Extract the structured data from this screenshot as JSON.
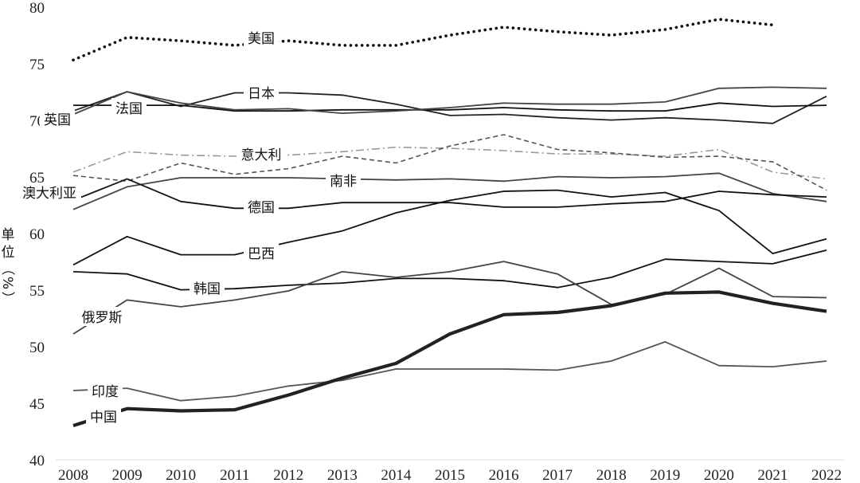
{
  "chart_data": {
    "type": "line",
    "ylabel_chars": [
      "单",
      "位",
      "（",
      "%",
      "）"
    ],
    "x": [
      2008,
      2009,
      2010,
      2011,
      2012,
      2013,
      2014,
      2015,
      2016,
      2017,
      2018,
      2019,
      2020,
      2021,
      2022
    ],
    "ylim": [
      40,
      80
    ],
    "yticks": [
      40,
      45,
      50,
      55,
      60,
      65,
      70,
      75,
      80
    ],
    "grid": false,
    "series": [
      {
        "name": "美国",
        "style": "dotted",
        "color": "#111111",
        "values": [
          75.4,
          77.4,
          77.1,
          76.7,
          77.1,
          76.7,
          76.7,
          77.6,
          78.3,
          77.9,
          77.6,
          78.1,
          79.0,
          78.5,
          null
        ]
      },
      {
        "name": "日本",
        "style": "solid",
        "color": "#222222",
        "values": [
          70.9,
          72.6,
          71.3,
          72.5,
          72.5,
          72.3,
          71.5,
          70.5,
          70.6,
          70.3,
          70.1,
          70.3,
          70.1,
          69.8,
          72.2
        ]
      },
      {
        "name": "法国",
        "style": "solid",
        "color": "#111111",
        "values": [
          71.4,
          71.4,
          71.4,
          70.9,
          70.9,
          71.0,
          71.0,
          71.0,
          71.2,
          71.0,
          70.9,
          70.9,
          71.6,
          71.3,
          71.4
        ]
      },
      {
        "name": "英国",
        "style": "solid",
        "color": "#444444",
        "values": [
          70.6,
          72.6,
          71.6,
          71.0,
          71.1,
          70.7,
          70.9,
          71.2,
          71.6,
          71.5,
          71.5,
          71.7,
          72.9,
          73.0,
          72.9
        ]
      },
      {
        "name": "意大利",
        "style": "dashdot",
        "color": "#999999",
        "values": [
          65.5,
          67.3,
          67.0,
          66.9,
          67.0,
          67.3,
          67.7,
          67.6,
          67.4,
          67.1,
          67.1,
          66.9,
          67.5,
          65.5,
          64.9
        ]
      },
      {
        "name": "南非",
        "style": "dashed",
        "color": "#555555",
        "values": [
          65.2,
          64.7,
          66.3,
          65.3,
          65.8,
          66.9,
          66.3,
          67.8,
          68.8,
          67.5,
          67.2,
          66.8,
          66.9,
          66.4,
          63.9
        ]
      },
      {
        "name": "澳大利亚",
        "style": "solid",
        "color": "#444444",
        "values": [
          62.2,
          64.2,
          65.0,
          65.0,
          65.0,
          64.9,
          64.8,
          64.9,
          64.7,
          65.1,
          65.0,
          65.1,
          65.4,
          63.6,
          62.9
        ]
      },
      {
        "name": "德国",
        "style": "solid",
        "color": "#111111",
        "values": [
          63.0,
          64.9,
          62.9,
          62.3,
          62.3,
          62.8,
          62.8,
          62.8,
          62.4,
          62.4,
          62.7,
          62.9,
          63.8,
          63.5,
          63.3
        ]
      },
      {
        "name": "巴西",
        "style": "solid",
        "color": "#111111",
        "values": [
          57.3,
          59.8,
          58.2,
          58.2,
          59.3,
          60.3,
          61.9,
          63.0,
          63.8,
          63.9,
          63.3,
          63.7,
          62.1,
          58.3,
          59.6
        ]
      },
      {
        "name": "韩国",
        "style": "solid",
        "color": "#111111",
        "values": [
          56.7,
          56.5,
          55.1,
          55.2,
          55.5,
          55.7,
          56.1,
          56.1,
          55.9,
          55.3,
          56.2,
          57.8,
          57.6,
          57.4,
          58.6
        ]
      },
      {
        "name": "俄罗斯",
        "style": "solid",
        "color": "#444444",
        "values": [
          51.2,
          54.2,
          53.6,
          54.2,
          55.0,
          56.7,
          56.2,
          56.7,
          57.6,
          56.5,
          53.8,
          54.7,
          57.0,
          54.5,
          54.4
        ]
      },
      {
        "name": "印度",
        "style": "solid",
        "color": "#555555",
        "values": [
          46.2,
          46.4,
          45.3,
          45.7,
          46.6,
          47.1,
          48.1,
          48.1,
          48.1,
          48.0,
          48.8,
          50.5,
          48.4,
          48.3,
          48.8
        ]
      },
      {
        "name": "中国",
        "style": "thick",
        "color": "#222222",
        "values": [
          43.1,
          44.6,
          44.4,
          44.5,
          45.8,
          47.3,
          48.6,
          51.2,
          52.9,
          53.1,
          53.7,
          54.8,
          54.9,
          53.9,
          53.2
        ]
      }
    ],
    "annotations": [
      "美国",
      "日本",
      "法国",
      "英国",
      "意大利",
      "南非",
      "澳大利亚",
      "德国",
      "巴西",
      "韩国",
      "俄罗斯",
      "印度",
      "中国"
    ]
  }
}
